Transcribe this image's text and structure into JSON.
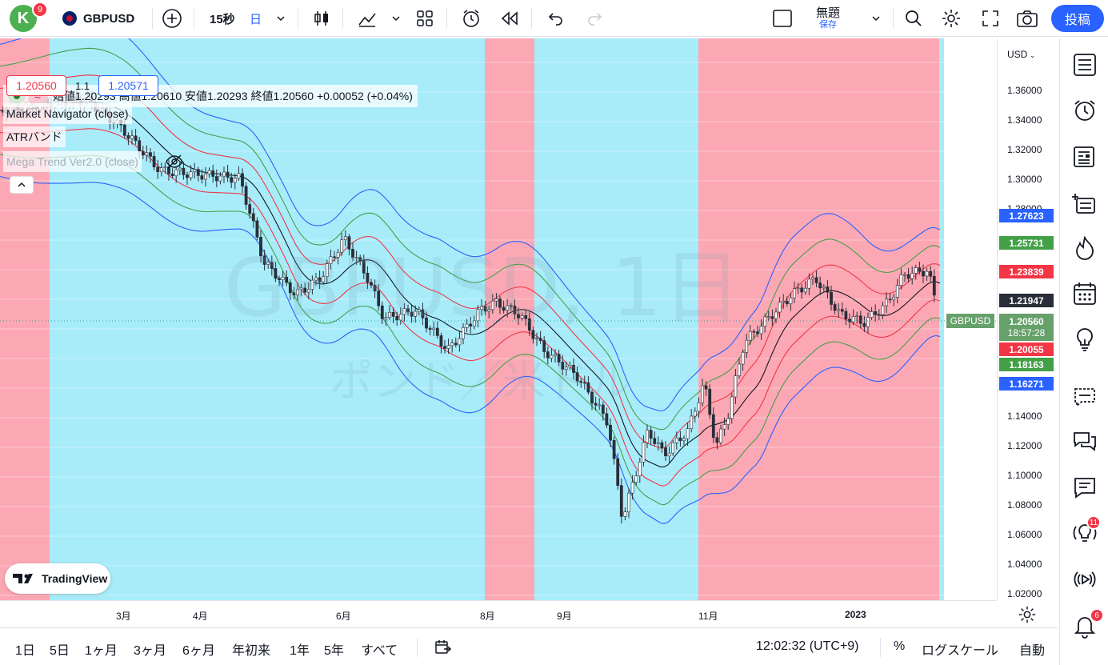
{
  "topbar": {
    "avatar_letter": "K",
    "avatar_badge": "9",
    "symbol": "GBPUSD",
    "interval": "15秒",
    "timeframe": "日",
    "layout_name": "無題",
    "save_label": "保存",
    "post_label": "投稿"
  },
  "legend": {
    "ohlc": "始値1.20293 高値1.20610 安値1.20293 終値1.20560 +0.00052 (+0.04%)",
    "bid": "1.20560",
    "spread": "1.1",
    "ask": "1.20571",
    "indicators": [
      "Market Navigator (close)",
      "ATRバンド",
      "Mega Trend Ver2.0 (close)"
    ]
  },
  "watermark": {
    "title": "GBPUSD, 1日",
    "subtitle": "ポンド／米ドル"
  },
  "price_axis": {
    "currency": "USD",
    "ticks": [
      "1.36000",
      "1.34000",
      "1.32000",
      "1.30000",
      "1.28000",
      "1.14000",
      "1.12000",
      "1.10000",
      "1.08000",
      "1.06000",
      "1.04000",
      "1.02000"
    ],
    "labels": [
      {
        "text": "1.27623",
        "color": "#2962ff"
      },
      {
        "text": "1.25731",
        "color": "#43a047"
      },
      {
        "text": "1.23839",
        "color": "#f23645"
      },
      {
        "text": "1.21947",
        "color": "#2a2e39"
      },
      {
        "text": "1.20055",
        "color": "#f23645"
      },
      {
        "text": "1.18163",
        "color": "#43a047"
      },
      {
        "text": "1.16271",
        "color": "#2962ff"
      }
    ],
    "current_price": "1.20560",
    "countdown": "18:57:28",
    "symbol_tag": "GBPUSD"
  },
  "time_axis": {
    "ticks": [
      "3月",
      "4月",
      "6月",
      "8月",
      "9月",
      "11月",
      "2023"
    ]
  },
  "bottombar": {
    "ranges": [
      "1日",
      "5日",
      "1ヶ月",
      "3ヶ月",
      "6ヶ月",
      "年初来",
      "1年",
      "5年",
      "すべて"
    ],
    "clock": "12:02:32 (UTC+9)",
    "percent": "%",
    "log": "ログスケール",
    "auto": "自動"
  },
  "rightbar": {
    "ideas_badge": "11",
    "alerts_badge": "6"
  },
  "branding": {
    "logo_text": "TradingView"
  },
  "colors": {
    "bg_blue": "#a8ecfa",
    "bg_red": "#fca8b4",
    "up": "#26a69a",
    "down": "#ef5350",
    "accent": "#2962ff"
  }
}
